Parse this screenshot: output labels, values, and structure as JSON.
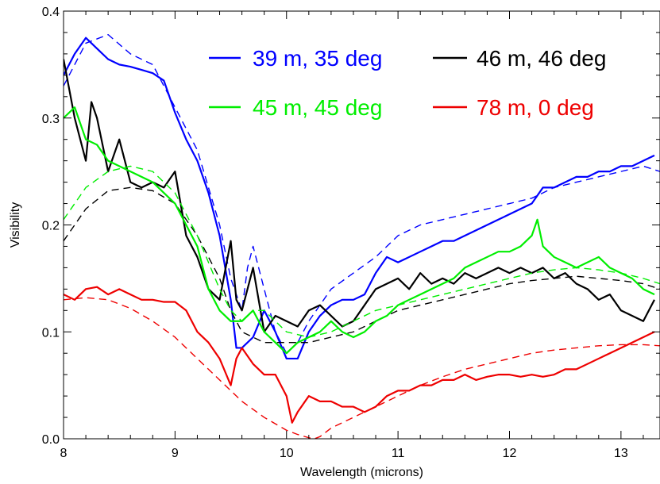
{
  "chart_data": {
    "type": "line",
    "title": "",
    "xlabel": "Wavelength (microns)",
    "ylabel": "Visibility",
    "xlim": [
      8.0,
      13.35
    ],
    "ylim": [
      0.0,
      0.4
    ],
    "x_ticks": [
      8,
      9,
      10,
      11,
      12,
      13
    ],
    "x_tick_labels": [
      "8",
      "9",
      "10",
      "11",
      "12",
      "13"
    ],
    "y_ticks": [
      0.0,
      0.1,
      0.2,
      0.3,
      0.4
    ],
    "y_tick_labels": [
      "0.0",
      "0.1",
      "0.2",
      "0.3",
      "0.4"
    ],
    "grid": false,
    "legend_placement": "top-right",
    "series": [
      {
        "name": "39 m, 35 deg",
        "color": "#0000ff",
        "observed": {
          "x": [
            8.0,
            8.1,
            8.2,
            8.3,
            8.4,
            8.5,
            8.6,
            8.7,
            8.8,
            8.9,
            9.0,
            9.1,
            9.2,
            9.3,
            9.4,
            9.5,
            9.55,
            9.6,
            9.7,
            9.8,
            9.9,
            10.0,
            10.1,
            10.2,
            10.3,
            10.4,
            10.5,
            10.6,
            10.7,
            10.8,
            10.9,
            11.0,
            11.1,
            11.2,
            11.3,
            11.4,
            11.5,
            11.6,
            11.7,
            11.8,
            11.9,
            12.0,
            12.1,
            12.2,
            12.3,
            12.4,
            12.5,
            12.6,
            12.7,
            12.8,
            12.9,
            13.0,
            13.1,
            13.2,
            13.3
          ],
          "y": [
            0.34,
            0.36,
            0.375,
            0.365,
            0.355,
            0.35,
            0.348,
            0.345,
            0.342,
            0.335,
            0.305,
            0.28,
            0.26,
            0.23,
            0.19,
            0.13,
            0.085,
            0.085,
            0.095,
            0.12,
            0.1,
            0.075,
            0.075,
            0.1,
            0.115,
            0.125,
            0.13,
            0.13,
            0.135,
            0.155,
            0.17,
            0.165,
            0.17,
            0.175,
            0.18,
            0.185,
            0.185,
            0.19,
            0.195,
            0.2,
            0.205,
            0.21,
            0.215,
            0.22,
            0.235,
            0.235,
            0.24,
            0.245,
            0.245,
            0.25,
            0.25,
            0.255,
            0.255,
            0.26,
            0.265
          ]
        },
        "model": {
          "x": [
            8.0,
            8.2,
            8.4,
            8.6,
            8.8,
            9.0,
            9.2,
            9.4,
            9.5,
            9.6,
            9.65,
            9.7,
            9.8,
            9.9,
            10.0,
            10.1,
            10.2,
            10.4,
            10.6,
            10.8,
            11.0,
            11.2,
            11.4,
            11.6,
            11.8,
            12.0,
            12.2,
            12.4,
            12.6,
            12.8,
            13.0,
            13.2,
            13.35
          ],
          "y": [
            0.33,
            0.37,
            0.378,
            0.36,
            0.35,
            0.31,
            0.27,
            0.2,
            0.15,
            0.12,
            0.16,
            0.18,
            0.14,
            0.1,
            0.08,
            0.09,
            0.11,
            0.14,
            0.155,
            0.17,
            0.19,
            0.2,
            0.205,
            0.21,
            0.215,
            0.22,
            0.225,
            0.235,
            0.24,
            0.245,
            0.25,
            0.255,
            0.25
          ]
        }
      },
      {
        "name": "46 m, 46 deg",
        "color": "#000000",
        "observed": {
          "x": [
            8.0,
            8.1,
            8.2,
            8.25,
            8.3,
            8.4,
            8.5,
            8.6,
            8.7,
            8.8,
            8.9,
            9.0,
            9.1,
            9.2,
            9.3,
            9.4,
            9.5,
            9.55,
            9.6,
            9.7,
            9.8,
            9.9,
            10.0,
            10.1,
            10.2,
            10.3,
            10.4,
            10.5,
            10.6,
            10.7,
            10.8,
            10.9,
            11.0,
            11.1,
            11.2,
            11.3,
            11.4,
            11.5,
            11.6,
            11.7,
            11.8,
            11.9,
            12.0,
            12.1,
            12.2,
            12.3,
            12.4,
            12.5,
            12.6,
            12.7,
            12.8,
            12.9,
            13.0,
            13.1,
            13.2,
            13.3
          ],
          "y": [
            0.355,
            0.3,
            0.26,
            0.315,
            0.3,
            0.25,
            0.28,
            0.24,
            0.235,
            0.24,
            0.235,
            0.25,
            0.19,
            0.17,
            0.14,
            0.13,
            0.185,
            0.13,
            0.12,
            0.16,
            0.1,
            0.115,
            0.11,
            0.105,
            0.12,
            0.125,
            0.115,
            0.105,
            0.11,
            0.125,
            0.14,
            0.145,
            0.15,
            0.14,
            0.155,
            0.145,
            0.15,
            0.145,
            0.155,
            0.15,
            0.155,
            0.16,
            0.155,
            0.16,
            0.155,
            0.16,
            0.15,
            0.155,
            0.145,
            0.14,
            0.13,
            0.135,
            0.12,
            0.115,
            0.11,
            0.13
          ]
        },
        "model": {
          "x": [
            8.0,
            8.2,
            8.4,
            8.6,
            8.8,
            9.0,
            9.2,
            9.4,
            9.5,
            9.6,
            9.8,
            10.0,
            10.2,
            10.4,
            10.6,
            10.8,
            11.0,
            11.2,
            11.4,
            11.6,
            11.8,
            12.0,
            12.2,
            12.4,
            12.6,
            12.8,
            13.0,
            13.2,
            13.35
          ],
          "y": [
            0.185,
            0.215,
            0.232,
            0.235,
            0.232,
            0.22,
            0.19,
            0.15,
            0.12,
            0.1,
            0.09,
            0.09,
            0.09,
            0.095,
            0.1,
            0.11,
            0.12,
            0.125,
            0.13,
            0.135,
            0.14,
            0.145,
            0.148,
            0.15,
            0.152,
            0.15,
            0.148,
            0.145,
            0.14
          ]
        }
      },
      {
        "name": "45 m, 45 deg",
        "color": "#00ee00",
        "observed": {
          "x": [
            8.0,
            8.1,
            8.2,
            8.3,
            8.4,
            8.5,
            8.6,
            8.7,
            8.8,
            8.9,
            9.0,
            9.1,
            9.2,
            9.3,
            9.4,
            9.5,
            9.6,
            9.7,
            9.8,
            9.9,
            10.0,
            10.1,
            10.2,
            10.3,
            10.4,
            10.5,
            10.6,
            10.7,
            10.8,
            10.9,
            11.0,
            11.1,
            11.2,
            11.3,
            11.4,
            11.5,
            11.6,
            11.7,
            11.8,
            11.9,
            12.0,
            12.1,
            12.2,
            12.25,
            12.3,
            12.4,
            12.5,
            12.6,
            12.7,
            12.8,
            12.9,
            13.0,
            13.1,
            13.2,
            13.3
          ],
          "y": [
            0.3,
            0.31,
            0.28,
            0.275,
            0.26,
            0.255,
            0.25,
            0.245,
            0.24,
            0.23,
            0.22,
            0.2,
            0.18,
            0.14,
            0.12,
            0.11,
            0.11,
            0.12,
            0.1,
            0.09,
            0.08,
            0.09,
            0.095,
            0.1,
            0.11,
            0.1,
            0.095,
            0.1,
            0.11,
            0.115,
            0.125,
            0.13,
            0.135,
            0.14,
            0.145,
            0.15,
            0.16,
            0.165,
            0.17,
            0.175,
            0.175,
            0.18,
            0.19,
            0.205,
            0.18,
            0.17,
            0.165,
            0.16,
            0.165,
            0.17,
            0.16,
            0.155,
            0.15,
            0.14,
            0.135
          ]
        },
        "model": {
          "x": [
            8.0,
            8.2,
            8.4,
            8.6,
            8.8,
            9.0,
            9.2,
            9.4,
            9.5,
            9.6,
            9.7,
            9.8,
            10.0,
            10.2,
            10.4,
            10.6,
            10.8,
            11.0,
            11.2,
            11.4,
            11.6,
            11.8,
            12.0,
            12.2,
            12.4,
            12.6,
            12.8,
            13.0,
            13.2,
            13.35
          ],
          "y": [
            0.205,
            0.235,
            0.25,
            0.255,
            0.25,
            0.23,
            0.19,
            0.14,
            0.12,
            0.11,
            0.12,
            0.12,
            0.1,
            0.095,
            0.1,
            0.11,
            0.12,
            0.125,
            0.13,
            0.135,
            0.14,
            0.145,
            0.15,
            0.155,
            0.158,
            0.16,
            0.158,
            0.155,
            0.15,
            0.145
          ]
        }
      },
      {
        "name": "78 m, 0 deg",
        "color": "#ee0000",
        "observed": {
          "x": [
            8.0,
            8.1,
            8.2,
            8.3,
            8.4,
            8.5,
            8.6,
            8.7,
            8.8,
            8.9,
            9.0,
            9.1,
            9.2,
            9.3,
            9.4,
            9.5,
            9.55,
            9.6,
            9.7,
            9.8,
            9.9,
            10.0,
            10.05,
            10.1,
            10.2,
            10.3,
            10.4,
            10.5,
            10.6,
            10.7,
            10.8,
            10.9,
            11.0,
            11.1,
            11.2,
            11.3,
            11.4,
            11.5,
            11.6,
            11.7,
            11.8,
            11.9,
            12.0,
            12.1,
            12.2,
            12.3,
            12.4,
            12.5,
            12.6,
            12.7,
            12.8,
            12.9,
            13.0,
            13.1,
            13.2,
            13.3
          ],
          "y": [
            0.135,
            0.13,
            0.14,
            0.142,
            0.135,
            0.14,
            0.135,
            0.13,
            0.13,
            0.128,
            0.128,
            0.12,
            0.1,
            0.09,
            0.075,
            0.05,
            0.075,
            0.085,
            0.07,
            0.06,
            0.06,
            0.04,
            0.015,
            0.025,
            0.04,
            0.035,
            0.035,
            0.03,
            0.03,
            0.025,
            0.03,
            0.04,
            0.045,
            0.045,
            0.05,
            0.05,
            0.055,
            0.055,
            0.06,
            0.055,
            0.058,
            0.06,
            0.06,
            0.058,
            0.06,
            0.058,
            0.06,
            0.065,
            0.065,
            0.07,
            0.075,
            0.08,
            0.085,
            0.09,
            0.095,
            0.1
          ]
        },
        "model": {
          "x": [
            8.0,
            8.2,
            8.4,
            8.6,
            8.8,
            9.0,
            9.2,
            9.4,
            9.6,
            9.8,
            10.0,
            10.1,
            10.2,
            10.25,
            10.3,
            10.4,
            10.6,
            10.8,
            11.0,
            11.2,
            11.4,
            11.6,
            11.8,
            12.0,
            12.2,
            12.4,
            12.6,
            12.8,
            13.0,
            13.2,
            13.35
          ],
          "y": [
            0.13,
            0.132,
            0.13,
            0.122,
            0.11,
            0.095,
            0.075,
            0.055,
            0.035,
            0.02,
            0.008,
            0.004,
            0.001,
            0.0,
            0.002,
            0.01,
            0.02,
            0.03,
            0.04,
            0.05,
            0.058,
            0.065,
            0.07,
            0.075,
            0.08,
            0.083,
            0.085,
            0.087,
            0.088,
            0.088,
            0.087
          ]
        }
      }
    ],
    "legend": [
      {
        "label": "39 m, 35 deg",
        "color": "#0000ff",
        "style": "solid"
      },
      {
        "label": "46 m, 46 deg",
        "color": "#000000",
        "style": "solid"
      },
      {
        "label": "45 m, 45 deg",
        "color": "#00ee00",
        "style": "solid"
      },
      {
        "label": "78 m, 0 deg",
        "color": "#ee0000",
        "style": "solid"
      }
    ],
    "line_styles": {
      "observed": "solid",
      "model": "dashed"
    }
  }
}
